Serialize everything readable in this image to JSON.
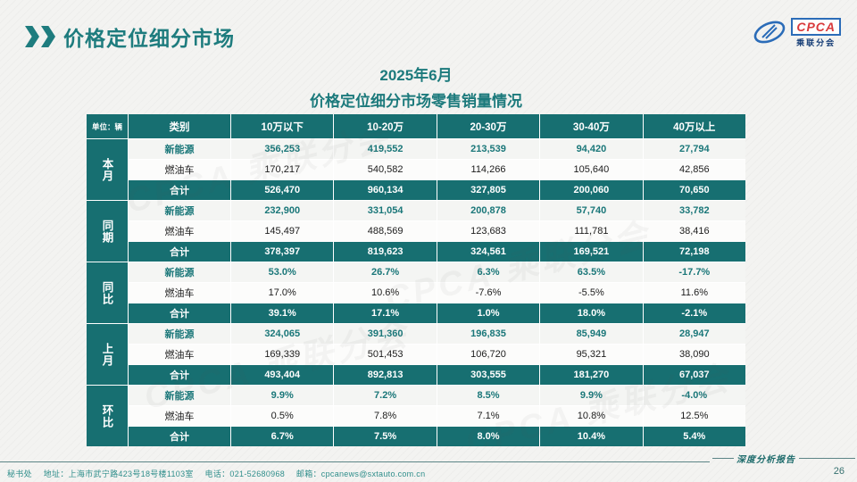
{
  "page": {
    "title": "价格定位细分市场",
    "page_number": "26",
    "watermark": "CPCA 乘联分会"
  },
  "logo": {
    "name": "CPCA",
    "subtitle": "乘联分会"
  },
  "report": {
    "title_line1": "2025年6月",
    "title_line2": "价格定位细分市场零售销量情况"
  },
  "footer": {
    "secretariat": "秘书处",
    "address": "地址：上海市武宁路423号18号楼1103室",
    "phone": "电话：021-52680968",
    "email": "邮箱：cpcanews@sxtauto.com.cn",
    "report_type": "深度分析报告"
  },
  "table": {
    "unit_label": "单位：辆",
    "columns": [
      "类别",
      "10万以下",
      "10-20万",
      "20-30万",
      "30-40万",
      "40万以上"
    ],
    "groups": [
      {
        "label": "本月",
        "rows": [
          {
            "label": "新能源",
            "style": "nev",
            "values": [
              "356,253",
              "419,552",
              "213,539",
              "94,420",
              "27,794"
            ]
          },
          {
            "label": "燃油车",
            "style": "fuel",
            "values": [
              "170,217",
              "540,582",
              "114,266",
              "105,640",
              "42,856"
            ]
          },
          {
            "label": "合计",
            "style": "total",
            "values": [
              "526,470",
              "960,134",
              "327,805",
              "200,060",
              "70,650"
            ]
          }
        ]
      },
      {
        "label": "同期",
        "rows": [
          {
            "label": "新能源",
            "style": "nev",
            "values": [
              "232,900",
              "331,054",
              "200,878",
              "57,740",
              "33,782"
            ]
          },
          {
            "label": "燃油车",
            "style": "fuel",
            "values": [
              "145,497",
              "488,569",
              "123,683",
              "111,781",
              "38,416"
            ]
          },
          {
            "label": "合计",
            "style": "total",
            "values": [
              "378,397",
              "819,623",
              "324,561",
              "169,521",
              "72,198"
            ]
          }
        ]
      },
      {
        "label": "同比",
        "rows": [
          {
            "label": "新能源",
            "style": "nev",
            "values": [
              "53.0%",
              "26.7%",
              "6.3%",
              "63.5%",
              "-17.7%"
            ]
          },
          {
            "label": "燃油车",
            "style": "fuel",
            "values": [
              "17.0%",
              "10.6%",
              "-7.6%",
              "-5.5%",
              "11.6%"
            ]
          },
          {
            "label": "合计",
            "style": "total",
            "values": [
              "39.1%",
              "17.1%",
              "1.0%",
              "18.0%",
              "-2.1%"
            ]
          }
        ]
      },
      {
        "label": "上月",
        "rows": [
          {
            "label": "新能源",
            "style": "nev",
            "values": [
              "324,065",
              "391,360",
              "196,835",
              "85,949",
              "28,947"
            ]
          },
          {
            "label": "燃油车",
            "style": "fuel",
            "values": [
              "169,339",
              "501,453",
              "106,720",
              "95,321",
              "38,090"
            ]
          },
          {
            "label": "合计",
            "style": "total",
            "values": [
              "493,404",
              "892,813",
              "303,555",
              "181,270",
              "67,037"
            ]
          }
        ]
      },
      {
        "label": "环比",
        "rows": [
          {
            "label": "新能源",
            "style": "nev",
            "values": [
              "9.9%",
              "7.2%",
              "8.5%",
              "9.9%",
              "-4.0%"
            ]
          },
          {
            "label": "燃油车",
            "style": "fuel",
            "values": [
              "0.5%",
              "7.8%",
              "7.1%",
              "10.8%",
              "12.5%"
            ]
          },
          {
            "label": "合计",
            "style": "total",
            "values": [
              "6.7%",
              "7.5%",
              "8.0%",
              "10.4%",
              "5.4%"
            ]
          }
        ]
      }
    ]
  },
  "colors": {
    "accent_teal": "#176f71",
    "title_teal": "#1e7c7e",
    "logo_blue": "#2b6cb8",
    "logo_red": "#d93a3c"
  }
}
